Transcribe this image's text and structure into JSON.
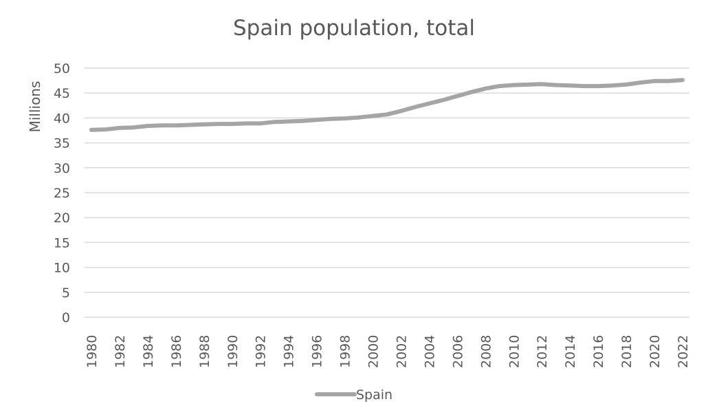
{
  "chart_data": {
    "type": "line",
    "title": "Spain population, total",
    "xlabel": "",
    "ylabel": "Millions",
    "ylim": [
      0,
      50
    ],
    "yticks": [
      0,
      5,
      10,
      15,
      20,
      25,
      30,
      35,
      40,
      45,
      50
    ],
    "xticks": [
      "1980",
      "1982",
      "1984",
      "1986",
      "1988",
      "1990",
      "1992",
      "1994",
      "1996",
      "1998",
      "2000",
      "2002",
      "2004",
      "2006",
      "2008",
      "2010",
      "2012",
      "2014",
      "2016",
      "2018",
      "2020",
      "2022"
    ],
    "grid": true,
    "legend_position": "bottom",
    "x": [
      1980,
      1981,
      1982,
      1983,
      1984,
      1985,
      1986,
      1987,
      1988,
      1989,
      1990,
      1991,
      1992,
      1993,
      1994,
      1995,
      1996,
      1997,
      1998,
      1999,
      2000,
      2001,
      2002,
      2003,
      2004,
      2005,
      2006,
      2007,
      2008,
      2009,
      2010,
      2011,
      2012,
      2013,
      2014,
      2015,
      2016,
      2017,
      2018,
      2019,
      2020,
      2021,
      2022
    ],
    "series": [
      {
        "name": "Spain",
        "color": "#a5a5a5",
        "values": [
          37.6,
          37.7,
          38.0,
          38.1,
          38.4,
          38.5,
          38.5,
          38.6,
          38.7,
          38.8,
          38.8,
          38.9,
          38.9,
          39.2,
          39.3,
          39.4,
          39.6,
          39.8,
          39.9,
          40.1,
          40.4,
          40.7,
          41.4,
          42.2,
          42.9,
          43.6,
          44.4,
          45.2,
          45.9,
          46.4,
          46.6,
          46.7,
          46.8,
          46.6,
          46.5,
          46.4,
          46.4,
          46.5,
          46.7,
          47.1,
          47.4,
          47.4,
          47.6
        ]
      }
    ]
  }
}
